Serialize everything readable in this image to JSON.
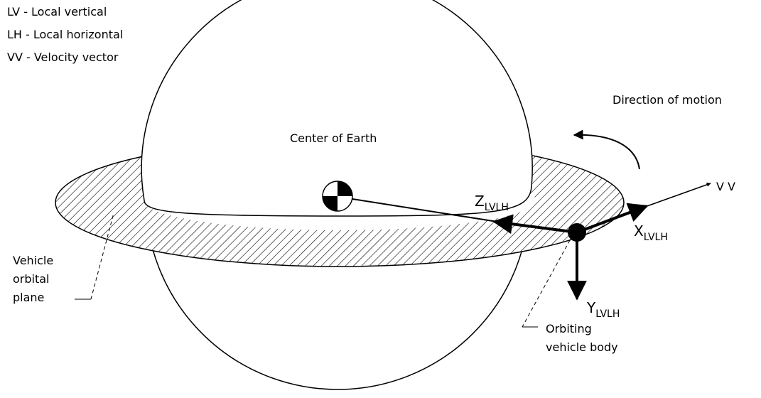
{
  "legend": [
    "LV - Local vertical",
    "LH - Local horizontal",
    "VV - Velocity vector"
  ],
  "labels": {
    "direction": "Direction of motion",
    "center": "Center of Earth",
    "vv": "V V",
    "plane": [
      "Vehicle",
      "orbital",
      "plane"
    ],
    "body": [
      "Orbiting",
      "vehicle body"
    ]
  },
  "axes": {
    "z": {
      "letter": "Z",
      "subscript": "LVLH"
    },
    "x": {
      "letter": "X",
      "subscript": "LVLH"
    },
    "y": {
      "letter": "Y",
      "subscript": "LVLH"
    }
  }
}
